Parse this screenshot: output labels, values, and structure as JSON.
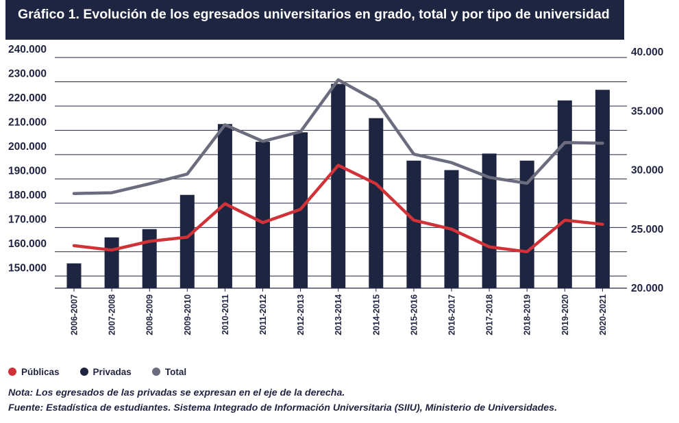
{
  "title": "Gráfico 1. Evolución de los egresados universitarios en grado, total y por tipo de universidad",
  "chart_data": {
    "type": "bar+line",
    "categories": [
      "2006-2007",
      "2007-2008",
      "2008-2009",
      "2009-2010",
      "2010-2011",
      "2011-2012",
      "2012-2013",
      "2013-2014",
      "2014-2015",
      "2015-2016",
      "2016-2017",
      "2017-2018",
      "2018-2019",
      "2019-2020",
      "2020-2021"
    ],
    "left_axis": {
      "ticks": [
        "240.000",
        "230.000",
        "220.000",
        "210.000",
        "200.000",
        "190.000",
        "180.000",
        "170.000",
        "160.000",
        "150.000"
      ],
      "ylim": [
        145000,
        240000
      ]
    },
    "right_axis": {
      "ticks": [
        "40.000",
        "35.000",
        "30.000",
        "25.000",
        "20.000"
      ],
      "ylim": [
        20000,
        40000
      ]
    },
    "series": [
      {
        "name": "Públicas",
        "type": "line",
        "axis": "left",
        "color": "#d13238",
        "values": [
          162500,
          160700,
          164300,
          166000,
          179800,
          172000,
          177500,
          195600,
          188000,
          173000,
          169300,
          162000,
          160000,
          173000,
          171300
        ]
      },
      {
        "name": "Privadas",
        "type": "bar",
        "axis": "right",
        "color": "#1e2541",
        "values": [
          22100,
          24300,
          25000,
          27900,
          33900,
          32400,
          33200,
          37300,
          34400,
          30800,
          30000,
          31400,
          30800,
          35900,
          36800
        ]
      },
      {
        "name": "Total",
        "type": "line",
        "axis": "left",
        "color": "#6b6c7e",
        "values": [
          184000,
          184300,
          188000,
          192000,
          212300,
          205500,
          209400,
          230800,
          222200,
          200200,
          196700,
          190600,
          188200,
          205000,
          204700
        ]
      }
    ],
    "legend_position": "bottom-left"
  },
  "legend": [
    {
      "label": "Públicas",
      "color": "#d13238"
    },
    {
      "label": "Privadas",
      "color": "#1e2541"
    },
    {
      "label": "Total",
      "color": "#6b6c7e"
    }
  ],
  "notes": {
    "nota": "Nota: Los egresados de las privadas se expresan en el eje de la derecha.",
    "fuente": "Fuente: Estadística de estudiantes. Sistema Integrado de Información Universitaria (SIIU), Ministerio de Universidades."
  }
}
